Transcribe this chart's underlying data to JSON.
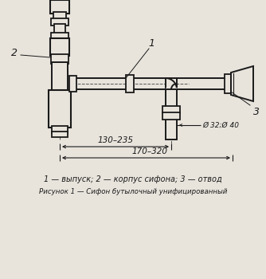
{
  "bg_color": "#e8e4dc",
  "line_color": "#1a1a1a",
  "caption": "1 — выпуск; 2 — корпус сифона; 3 — отвод",
  "title_text": "Рисунок 1 — Сифон бутылочный унифицированный",
  "label_1": "1",
  "label_2": "2",
  "label_3": "3",
  "dim_inner": "130–235",
  "dim_outer": "170–320",
  "dim_diam": "Ø 32;Ø 40"
}
